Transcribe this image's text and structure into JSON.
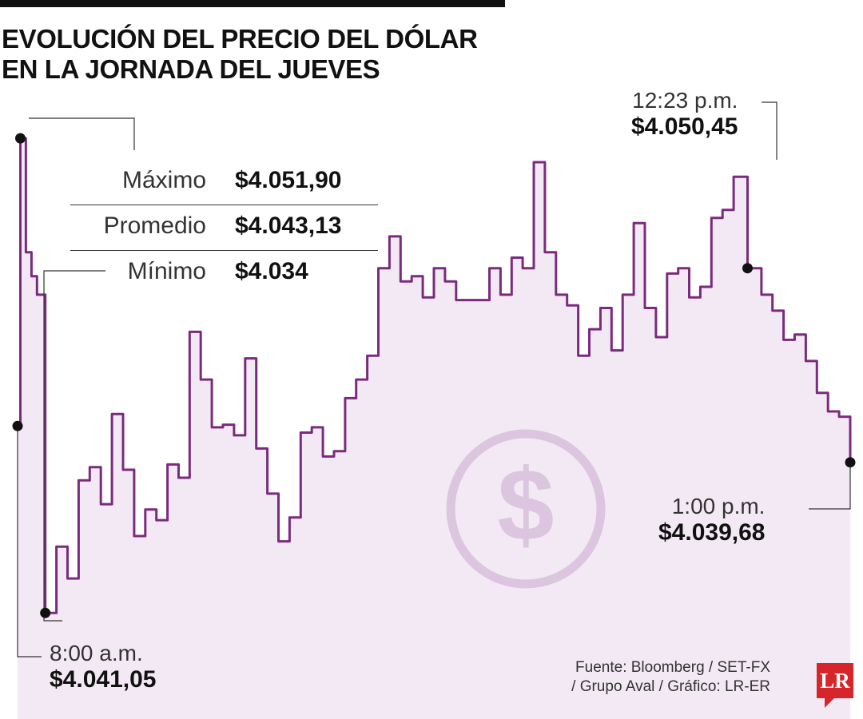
{
  "header": {
    "title_line1": "EVOLUCIÓN DEL PRECIO DEL DÓLAR",
    "title_line2": "EN LA JORNADA DEL JUEVES"
  },
  "stats": [
    {
      "label": "Máximo",
      "value": "$4.051,90"
    },
    {
      "label": "Promedio",
      "value": "$4.043,13"
    },
    {
      "label": "Mínimo",
      "value": "$4.034"
    }
  ],
  "annotations": {
    "start": {
      "time": "8:00 a.m.",
      "price": "$4.041,05"
    },
    "peak": {
      "time": "12:23 p.m.",
      "price": "$4.050,45"
    },
    "end": {
      "time": "1:00 p.m.",
      "price": "$4.039,68"
    }
  },
  "source": {
    "line1": "Fuente: Bloomberg / SET-FX",
    "line2": "/ Grupo Aval / Gráfico: LR-ER"
  },
  "logo": {
    "text": "LR"
  },
  "colors": {
    "line": "#7b2b7d",
    "area": "#f3e9f4",
    "watermark": "#dcc5de",
    "logo": "#d7262b",
    "text": "#1a1a1a"
  },
  "icons": {
    "watermark": "dollar-sign-icon"
  },
  "chart_data": {
    "type": "area",
    "title": "EVOLUCIÓN DEL PRECIO DEL DÓLAR EN LA JORNADA DEL JUEVES",
    "xlabel": "",
    "ylabel": "",
    "xlim": [
      "8:00",
      "13:00"
    ],
    "ylim": [
      4030,
      4053.5
    ],
    "grid": false,
    "legend": "none",
    "x": [
      "8:00",
      "8:01",
      "8:03",
      "8:05",
      "8:07",
      "8:10",
      "8:14",
      "8:18",
      "8:22",
      "8:26",
      "8:30",
      "8:34",
      "8:38",
      "8:42",
      "8:46",
      "8:50",
      "8:54",
      "8:58",
      "9:02",
      "9:06",
      "9:10",
      "9:14",
      "9:18",
      "9:22",
      "9:26",
      "9:30",
      "9:34",
      "9:38",
      "9:42",
      "9:46",
      "9:50",
      "9:54",
      "9:58",
      "10:02",
      "10:06",
      "10:10",
      "10:14",
      "10:18",
      "10:22",
      "10:26",
      "10:30",
      "10:34",
      "10:38",
      "10:42",
      "10:46",
      "10:50",
      "10:54",
      "10:58",
      "11:02",
      "11:06",
      "11:10",
      "11:14",
      "11:18",
      "11:22",
      "11:26",
      "11:30",
      "11:34",
      "11:38",
      "11:42",
      "11:46",
      "11:50",
      "11:54",
      "11:58",
      "12:02",
      "12:06",
      "12:10",
      "12:14",
      "12:18",
      "12:23",
      "12:28",
      "12:32",
      "12:36",
      "12:40",
      "12:44",
      "12:48",
      "12:52",
      "12:56",
      "13:00"
    ],
    "y": [
      4041.05,
      4051.9,
      4047.6,
      4046.7,
      4046.0,
      4034.0,
      4036.5,
      4035.3,
      4039.0,
      4039.5,
      4038.1,
      4041.5,
      4039.4,
      4036.9,
      4037.9,
      4037.5,
      4039.6,
      4039.1,
      4044.6,
      4042.8,
      4041.0,
      4041.1,
      4040.7,
      4043.6,
      4040.2,
      4038.5,
      4036.7,
      4037.6,
      4040.8,
      4041.0,
      4039.9,
      4040.1,
      4042.1,
      4042.8,
      4043.7,
      4047.0,
      4048.2,
      4046.5,
      4046.7,
      4045.9,
      4047.0,
      4046.5,
      4045.8,
      4045.8,
      4045.8,
      4047.0,
      4046.0,
      4047.4,
      4047.0,
      4051.0,
      4047.6,
      4046.0,
      4045.6,
      4043.7,
      4044.7,
      4045.5,
      4043.9,
      4046.0,
      4048.7,
      4045.5,
      4044.4,
      4046.8,
      4047.0,
      4045.9,
      4046.3,
      4048.9,
      4049.2,
      4050.45,
      4047.0,
      4046.0,
      4045.4,
      4044.3,
      4044.5,
      4043.5,
      4042.3,
      4041.6,
      4041.4,
      4039.68
    ]
  }
}
